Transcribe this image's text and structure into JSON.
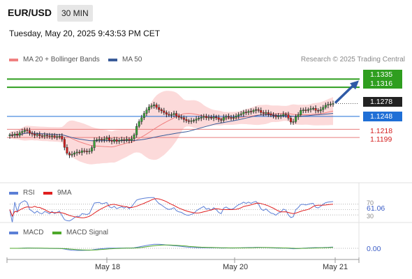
{
  "header": {
    "pair": "EUR/USD",
    "timeframe": "30 MIN",
    "datetime": "Tuesday, May 20, 2025 9:43:53 PM CET"
  },
  "legend": {
    "ma20": "MA 20 + Bollinger Bands",
    "ma50": "MA 50",
    "credit": "Research © 2025 Trading Central"
  },
  "colors": {
    "up": "#3aa33a",
    "down": "#d42020",
    "candle": "#222222",
    "resistance": "#2f9e1f",
    "support": "#e87c7c",
    "bollinger": "#fbd4d4",
    "ma20": "#f08080",
    "ma50": "#3a5c99",
    "pivot": "#1f6fd6",
    "current": "#222222",
    "rsi": "#5b7fd6",
    "rsi_ma": "#e02020",
    "macd": "#5b7fd6",
    "macd_signal": "#4ea82a"
  },
  "levels": [
    {
      "value": "1.1335",
      "style": "green"
    },
    {
      "value": "1.1316",
      "style": "green"
    },
    {
      "value": "1.1278",
      "style": "current"
    },
    {
      "value": "1.1248",
      "style": "blue"
    },
    {
      "value": "1.1218",
      "style": "red"
    },
    {
      "value": "1.1199",
      "style": "red"
    }
  ],
  "rsi_panel": {
    "label": "RSI",
    "ma_label": "9MA",
    "value": "61.06",
    "level_70": "70",
    "level_30": "30"
  },
  "macd_panel": {
    "label": "MACD",
    "signal_label": "MACD Signal",
    "value": "0.00"
  },
  "x_axis": {
    "labels": [
      "May 18",
      "May 20",
      "May 21"
    ]
  },
  "chart_data": {
    "type": "candlestick",
    "symbol": "EUR/USD",
    "interval": "30 MIN",
    "ylim": [
      1.11,
      1.136
    ],
    "close": [
      1.1205,
      1.1204,
      1.1207,
      1.1204,
      1.121,
      1.1213,
      1.1216,
      1.1215,
      1.1209,
      1.1207,
      1.1204,
      1.1206,
      1.1203,
      1.1202,
      1.1204,
      1.1203,
      1.1201,
      1.1203,
      1.12,
      1.1201,
      1.1202,
      1.1195,
      1.1176,
      1.1162,
      1.1158,
      1.116,
      1.1163,
      1.1165,
      1.1164,
      1.1168,
      1.1167,
      1.1166,
      1.1167,
      1.1175,
      1.1192,
      1.1194,
      1.1195,
      1.1193,
      1.1195,
      1.1198,
      1.1192,
      1.119,
      1.1194,
      1.119,
      1.1192,
      1.1194,
      1.1192,
      1.1195,
      1.1192,
      1.1196,
      1.1205,
      1.1225,
      1.1236,
      1.1245,
      1.1255,
      1.1263,
      1.127,
      1.1273,
      1.1275,
      1.1269,
      1.1264,
      1.1261,
      1.1257,
      1.1253,
      1.1251,
      1.1252,
      1.1255,
      1.1249,
      1.1246,
      1.1245,
      1.1241,
      1.1238,
      1.1237,
      1.1238,
      1.1239,
      1.1242,
      1.1244,
      1.1246,
      1.1248,
      1.1245,
      1.1246,
      1.1244,
      1.1247,
      1.1245,
      1.1241,
      1.1239,
      1.1246,
      1.1248,
      1.1246,
      1.1245,
      1.1246,
      1.1249,
      1.1252,
      1.1254,
      1.1258,
      1.1257,
      1.126,
      1.1259,
      1.1262,
      1.1264,
      1.1262,
      1.1257,
      1.1255,
      1.1257,
      1.1254,
      1.1251,
      1.125,
      1.1247,
      1.1249,
      1.125,
      1.1253,
      1.1252,
      1.1244,
      1.1235,
      1.1236,
      1.1247,
      1.1252,
      1.1262,
      1.1263,
      1.1262,
      1.1264,
      1.1266,
      1.1267,
      1.1262,
      1.1261,
      1.1264,
      1.1269,
      1.1274,
      1.1276,
      1.1277,
      1.1278
    ],
    "ma20_last": 1.1255,
    "ma50_last": 1.125,
    "resistance": [
      1.1335,
      1.1316
    ],
    "pivot": 1.1248,
    "current_price": 1.1278,
    "support": [
      1.1218,
      1.1199
    ],
    "rsi": {
      "last": 61.06,
      "levels": [
        70,
        30
      ]
    },
    "macd": {
      "last": 0.0
    },
    "x_ticks": [
      "May 18",
      "May 20",
      "May 21"
    ]
  }
}
